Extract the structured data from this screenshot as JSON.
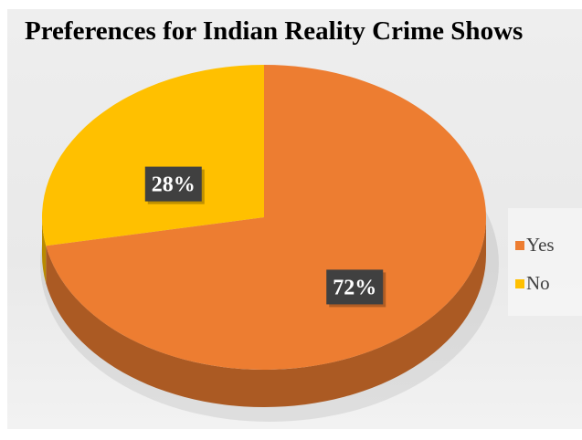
{
  "chart_data": {
    "type": "pie",
    "title": "Preferences for Indian Reality Crime Shows",
    "slices": [
      {
        "name": "Yes",
        "value": 72,
        "label": "72%",
        "color": "#ED7D31"
      },
      {
        "name": "No",
        "value": 28,
        "label": "28%",
        "color": "#FFC000"
      }
    ],
    "legend_position": "right",
    "style": "3d"
  }
}
